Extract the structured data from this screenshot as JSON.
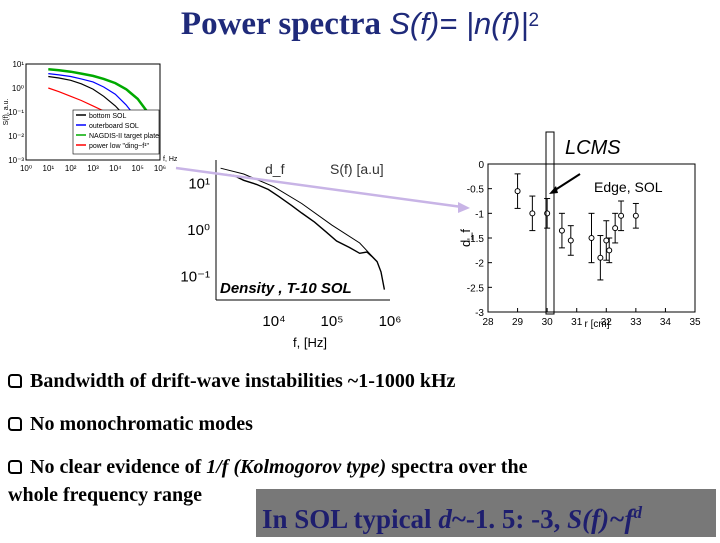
{
  "title": {
    "main": "Power spectra ",
    "formula": "S(f)= |n(f)|",
    "exponent": "2"
  },
  "chart_data": [
    {
      "type": "line",
      "xscale": "log",
      "yscale": "log",
      "xlim": [
        1,
        1000000
      ],
      "ylim": [
        0.001,
        10
      ],
      "x_ticks": [
        "10⁰",
        "10¹",
        "10²",
        "10³",
        "10⁴",
        "10⁵",
        "10⁶"
      ],
      "y_ticks": [
        "10⁻³",
        "10⁻²",
        "10⁻¹",
        "10⁰",
        "10¹"
      ],
      "ylabel": "S(f), a.u.",
      "xlabel": "f, Hz",
      "legend_position": "bottom-right",
      "series": [
        {
          "name": "bottom SOL",
          "color": "#000000",
          "x": [
            10,
            30,
            100,
            300,
            1000,
            3000,
            10000,
            30000,
            100000,
            300000
          ],
          "y": [
            3.0,
            2.6,
            2.1,
            1.5,
            0.9,
            0.45,
            0.18,
            0.06,
            0.012,
            0.002
          ]
        },
        {
          "name": "outerboard SOL",
          "color": "#0000ff",
          "x": [
            10,
            30,
            100,
            300,
            1000,
            3000,
            10000,
            30000,
            100000,
            300000
          ],
          "y": [
            4.0,
            3.5,
            3.0,
            2.4,
            1.8,
            1.1,
            0.55,
            0.2,
            0.05,
            0.008
          ]
        },
        {
          "name": "NAGDIS-II target plate",
          "color": "#00aa00",
          "x": [
            10,
            30,
            100,
            300,
            1000,
            3000,
            10000,
            30000,
            100000,
            300000
          ],
          "y": [
            6.0,
            5.5,
            4.8,
            4.0,
            3.2,
            2.4,
            1.6,
            0.9,
            0.35,
            0.09
          ]
        },
        {
          "name": "power low \"ding~f¹\"",
          "color": "#ff0000",
          "x": [
            10,
            30,
            100,
            300,
            1000,
            3000,
            10000,
            30000,
            100000,
            300000
          ],
          "y": [
            1.0,
            0.7,
            0.45,
            0.3,
            0.18,
            0.11,
            0.06,
            0.03,
            0.012,
            0.004
          ]
        }
      ]
    },
    {
      "type": "line",
      "xscale": "log",
      "yscale": "log",
      "xlim": [
        1000,
        1000000
      ],
      "ylim": [
        0.03,
        30
      ],
      "x_ticks": [
        "10⁴",
        "10⁵",
        "10⁶"
      ],
      "y_ticks": [
        "10⁻¹",
        "10⁰",
        "10¹"
      ],
      "xlabel": "f, [Hz]",
      "annotation": "Density , T-10 SOL",
      "series": [
        {
          "name": "S(f) [a.u]",
          "color": "#000000",
          "x": [
            1200,
            2000,
            3000,
            5000,
            8000,
            12000,
            20000,
            30000,
            50000,
            80000,
            120000,
            200000,
            300000,
            400000,
            500000,
            600000,
            700000,
            800000
          ],
          "y": [
            15,
            14,
            11,
            9,
            7,
            5,
            3.2,
            2.2,
            1.4,
            0.85,
            0.55,
            0.4,
            0.3,
            0.32,
            0.25,
            0.2,
            0.12,
            0.05
          ]
        },
        {
          "name": "d_f",
          "color": "#000000",
          "x": [
            1200,
            3000,
            10000,
            30000,
            100000,
            300000,
            600000
          ],
          "y": [
            20,
            15,
            8,
            3.5,
            1.2,
            0.5,
            0.2
          ]
        }
      ]
    },
    {
      "type": "scatter",
      "xlim": [
        28,
        35
      ],
      "ylim": [
        -3,
        0
      ],
      "x_ticks": [
        "28",
        "29",
        "30",
        "31",
        "32",
        "33",
        "34",
        "35"
      ],
      "y_ticks": [
        "0",
        "-0.5",
        "-1",
        "-1.5",
        "-2",
        "-2.5",
        "-3"
      ],
      "xlabel": "r [cm]",
      "ylabel": "d_f",
      "annotations": [
        "LCMS",
        "Edge, SOL"
      ],
      "series": [
        {
          "name": "d_f",
          "x": [
            29.0,
            29.5,
            30.0,
            30.5,
            30.8,
            31.5,
            31.8,
            32.0,
            32.1,
            32.3,
            32.5,
            33.0
          ],
          "y": [
            -0.55,
            -1.0,
            -1.0,
            -1.35,
            -1.55,
            -1.5,
            -1.9,
            -1.55,
            -1.75,
            -1.3,
            -1.05,
            -1.05
          ],
          "yerr": [
            0.35,
            0.35,
            0.3,
            0.35,
            0.3,
            0.5,
            0.45,
            0.4,
            0.25,
            0.3,
            0.3,
            0.25
          ]
        }
      ]
    }
  ],
  "bullets": [
    {
      "text": "Bandwidth of drift-wave instabilities ~1-1000 kHz"
    },
    {
      "text": "No monochromatic  modes"
    },
    {
      "text_before": "No clear evidence of ",
      "text_italic": "1/f (Kolmogorov type)",
      "text_after": " spectra over the",
      "line2": "whole frequency range"
    }
  ],
  "conclusion": {
    "prefix": "In SOL typical ",
    "d_label": "d",
    "range": "~-1. 5: -3, ",
    "sf": "S(f)~f",
    "exp": "d"
  },
  "colors": {
    "title": "#1f2a7a",
    "conclusion_bg": "#787878",
    "conclusion_text": "#1e1e6e",
    "arrow": "#c8b4e6"
  }
}
